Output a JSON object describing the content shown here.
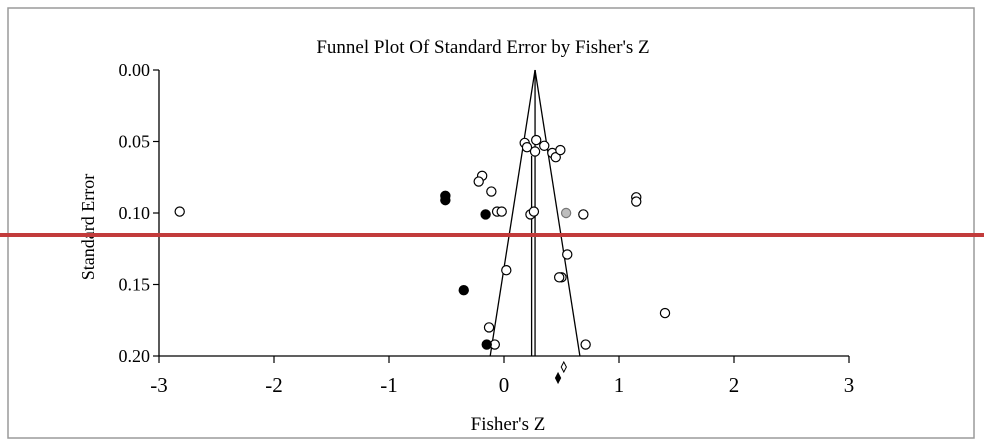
{
  "chart_data": {
    "type": "scatter",
    "title": "Funnel Plot Of Standard Error by Fisher's Z",
    "xlabel": "Fisher's Z",
    "ylabel": "Standard Error",
    "xlim": [
      -3,
      3
    ],
    "ylim": [
      0.0,
      0.2
    ],
    "y_inverted": true,
    "x_ticks": [
      "-3",
      "-2",
      "-1",
      "0",
      "1",
      "2",
      "3"
    ],
    "y_ticks": [
      "0.00",
      "0.05",
      "0.10",
      "0.15",
      "0.20"
    ],
    "series": [
      {
        "style": "open",
        "points": [
          [
            -2.82,
            0.099
          ],
          [
            -0.19,
            0.074
          ],
          [
            -0.22,
            0.078
          ],
          [
            -0.11,
            0.085
          ],
          [
            -0.06,
            0.099
          ],
          [
            -0.02,
            0.099
          ],
          [
            0.18,
            0.051
          ],
          [
            0.2,
            0.054
          ],
          [
            0.28,
            0.049
          ],
          [
            0.27,
            0.057
          ],
          [
            0.35,
            0.053
          ],
          [
            0.42,
            0.058
          ],
          [
            0.45,
            0.061
          ],
          [
            0.49,
            0.056
          ],
          [
            0.23,
            0.101
          ],
          [
            0.26,
            0.099
          ],
          [
            0.69,
            0.101
          ],
          [
            1.15,
            0.089
          ],
          [
            1.15,
            0.092
          ],
          [
            0.55,
            0.129
          ],
          [
            0.02,
            0.14
          ],
          [
            0.5,
            0.145
          ],
          [
            0.48,
            0.145
          ],
          [
            -0.13,
            0.18
          ],
          [
            1.4,
            0.17
          ],
          [
            -0.08,
            0.192
          ],
          [
            0.71,
            0.192
          ]
        ]
      },
      {
        "style": "filled",
        "points": [
          [
            -0.51,
            0.088
          ],
          [
            -0.51,
            0.091
          ],
          [
            -0.16,
            0.101
          ],
          [
            -0.35,
            0.154
          ],
          [
            -0.15,
            0.192
          ]
        ]
      },
      {
        "style": "gray",
        "points": [
          [
            0.54,
            0.1
          ]
        ]
      }
    ],
    "summary": {
      "observed_estimate": 0.27,
      "adjusted_estimate": 0.24,
      "funnel_apex_se": 0.0,
      "funnel_base_se": 0.2,
      "funnel_left_x_at_base": -0.12,
      "funnel_right_x_at_base": 0.66,
      "diamond_observed_x": 0.52,
      "diamond_adjusted_x": 0.47
    }
  }
}
